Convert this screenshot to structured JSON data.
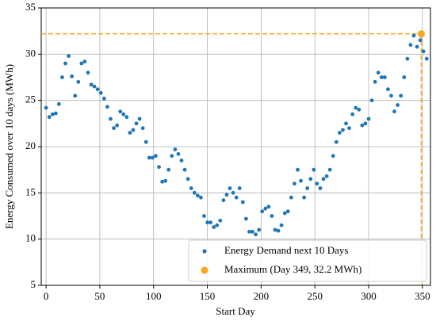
{
  "chart_data": {
    "type": "scatter",
    "xlabel": "Start Day",
    "ylabel": "Energy Consumed over 10 days (MWh)",
    "xlim": [
      -4.5,
      357.5
    ],
    "ylim": [
      5,
      35
    ],
    "xticks": [
      0,
      50,
      100,
      150,
      200,
      250,
      300,
      350
    ],
    "yticks": [
      5,
      10,
      15,
      20,
      25,
      30,
      35
    ],
    "grid": true,
    "legend": "lower right",
    "max_guide_lines": true,
    "series": [
      {
        "name": "Energy Demand next 10 Days",
        "color": "#1f77b4",
        "x": [
          0,
          3,
          6,
          9,
          12,
          15,
          18,
          21,
          24,
          27,
          30,
          33,
          36,
          39,
          42,
          45,
          48,
          51,
          54,
          57,
          60,
          63,
          66,
          69,
          72,
          75,
          78,
          81,
          84,
          87,
          90,
          93,
          96,
          99,
          102,
          105,
          108,
          111,
          114,
          117,
          120,
          123,
          126,
          129,
          132,
          135,
          138,
          141,
          144,
          147,
          150,
          153,
          156,
          159,
          162,
          165,
          168,
          171,
          174,
          177,
          180,
          183,
          186,
          189,
          192,
          195,
          198,
          201,
          204,
          207,
          210,
          213,
          216,
          219,
          222,
          225,
          228,
          231,
          234,
          237,
          240,
          243,
          246,
          249,
          252,
          255,
          258,
          261,
          264,
          267,
          270,
          273,
          276,
          279,
          282,
          285,
          288,
          291,
          294,
          297,
          300,
          303,
          306,
          309,
          312,
          315,
          318,
          321,
          324,
          327,
          330,
          333,
          336,
          339,
          342,
          345,
          348,
          351,
          354
        ],
        "values": [
          24.2,
          23.2,
          23.5,
          23.6,
          24.6,
          27.5,
          29.0,
          29.8,
          27.6,
          25.5,
          27.0,
          29.0,
          29.2,
          28.0,
          26.7,
          26.5,
          26.2,
          25.8,
          25.2,
          24.3,
          23.0,
          22.0,
          22.3,
          23.8,
          23.5,
          23.2,
          21.5,
          21.8,
          22.5,
          23.0,
          22.0,
          20.5,
          18.8,
          18.8,
          19.0,
          17.8,
          16.2,
          16.3,
          17.5,
          19.0,
          19.7,
          19.2,
          18.5,
          17.5,
          16.5,
          15.5,
          15.0,
          14.7,
          14.5,
          12.5,
          11.8,
          11.8,
          11.3,
          11.5,
          12.0,
          14.2,
          14.8,
          15.5,
          15.0,
          14.5,
          15.5,
          14.0,
          12.2,
          10.8,
          10.8,
          10.5,
          11.0,
          13.0,
          13.3,
          13.5,
          12.5,
          11.0,
          10.9,
          11.5,
          12.8,
          13.0,
          14.5,
          16.0,
          17.5,
          16.3,
          14.5,
          15.5,
          16.5,
          17.5,
          16.0,
          15.5,
          16.5,
          16.8,
          17.5,
          19.0,
          20.5,
          21.5,
          21.8,
          22.5,
          22.0,
          23.5,
          24.2,
          24.0,
          22.3,
          22.5,
          23.0,
          25.0,
          27.0,
          28.0,
          27.5,
          27.5,
          26.2,
          25.5,
          23.8,
          24.5,
          25.5,
          27.5,
          29.5,
          31.0,
          32.0,
          30.8,
          31.5,
          30.3,
          29.5
        ]
      },
      {
        "name": "Maximum (Day 349, 32.2 MWh)",
        "color": "#f5a623",
        "x": [
          349
        ],
        "values": [
          32.2
        ]
      }
    ]
  }
}
